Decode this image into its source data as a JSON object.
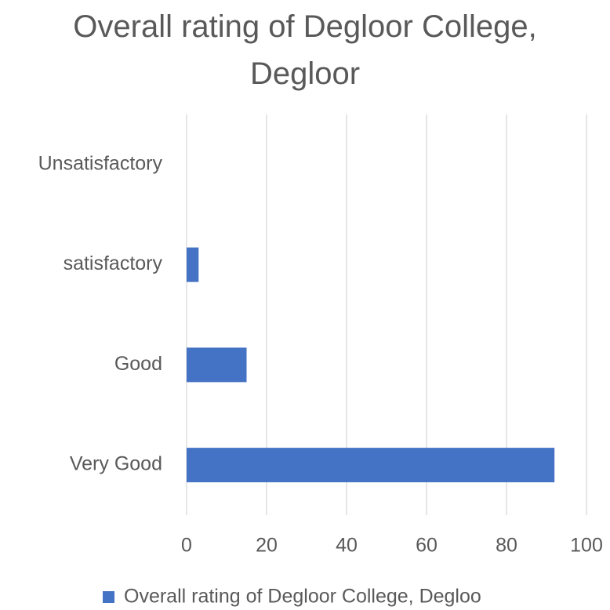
{
  "chart_data": {
    "type": "bar",
    "orientation": "horizontal",
    "title": "Overall rating of Degloor College, Degloor",
    "categories": [
      "Unsatisfactory",
      "satisfactory",
      "Good",
      "Very Good"
    ],
    "series": [
      {
        "name": "Overall rating of Degloor College, Degloo",
        "color": "#4472c4",
        "values": [
          0,
          3,
          15,
          92
        ]
      }
    ],
    "xlim": [
      0,
      100
    ],
    "xticks": [
      0,
      20,
      40,
      60,
      80,
      100
    ],
    "grid": true,
    "legend": "bottom"
  }
}
